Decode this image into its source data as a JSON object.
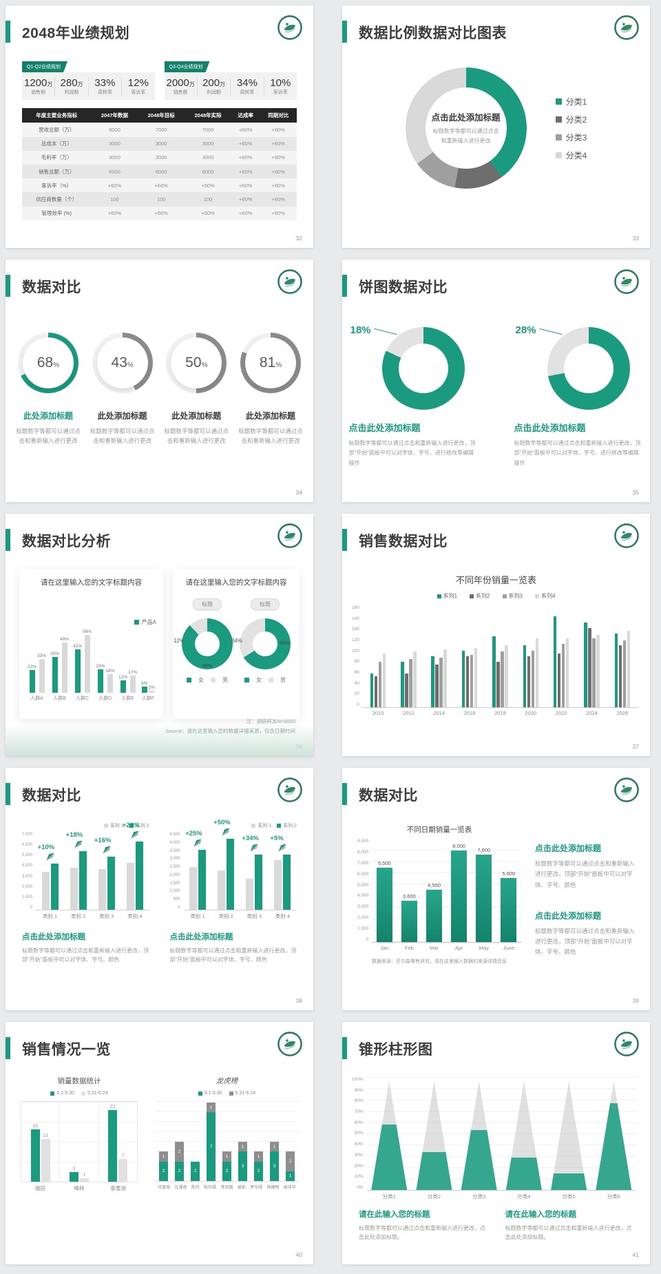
{
  "colors": {
    "teal": "#1a9b80",
    "dark": "#6e6e6e",
    "mid": "#9f9f9f",
    "light": "#d9d9d9",
    "lighter": "#e2e2e2",
    "grayarc": "#8c8c8c",
    "stackgray": "#8e8e8e"
  },
  "slides": {
    "s32": {
      "title": "2048年业绩规划",
      "page": "32",
      "groups": [
        {
          "badge": "Q1-Q2业绩规划",
          "stats": [
            {
              "value": "1200",
              "unit": "万",
              "label": "销售额"
            },
            {
              "value": "280",
              "unit": "万",
              "label": "利润额"
            },
            {
              "value": "33%",
              "unit": "",
              "label": "周转率"
            },
            {
              "value": "12%",
              "unit": "",
              "label": "客诉率"
            }
          ]
        },
        {
          "badge": "Q3-Q4业绩规划",
          "stats": [
            {
              "value": "2000",
              "unit": "万",
              "label": "销售额"
            },
            {
              "value": "200",
              "unit": "万",
              "label": "利润额"
            },
            {
              "value": "34%",
              "unit": "",
              "label": "周转率"
            },
            {
              "value": "10%",
              "unit": "",
              "label": "客诉率"
            }
          ]
        }
      ],
      "table": {
        "headers": [
          "年度主要业务指标",
          "2047年数据",
          "2048年目标",
          "2048年实际",
          "达成率",
          "同期对比"
        ],
        "rows": [
          [
            "营收总额（万）",
            "6000",
            "7000",
            "7000",
            "+60%",
            "+60%"
          ],
          [
            "总成本（万）",
            "3000",
            "3000",
            "3000",
            "+60%",
            "+60%"
          ],
          [
            "毛利率（万）",
            "3000",
            "3000",
            "3000",
            "+60%",
            "+60%"
          ],
          [
            "销售总额（万）",
            "6000",
            "6000",
            "6000",
            "+60%",
            "+60%"
          ],
          [
            "客诉率（%）",
            "+60%",
            "+60%",
            "+60%",
            "+60%",
            "+60%"
          ],
          [
            "供应商数量（个）",
            "100",
            "100",
            "100",
            "+60%",
            "+60%"
          ],
          [
            "管理效率 (%)",
            "+60%",
            "+60%",
            "+60%",
            "+60%",
            "+60%"
          ]
        ]
      }
    },
    "s33": {
      "title": "数据比例数据对比图表",
      "page": "33",
      "chart_data": {
        "type": "pie",
        "categories": [
          "分类1",
          "分类2",
          "分类3",
          "分类4"
        ],
        "values": [
          40,
          13,
          12,
          35
        ],
        "colors": [
          "teal",
          "dark",
          "mid",
          "light"
        ],
        "legend_position": "right"
      },
      "center_title": "点击此处添加标题",
      "center_sub": "标题数字等都可以通过点击和重新输入进行更改"
    },
    "s34": {
      "title": "数据对比",
      "page": "34",
      "chart_data": {
        "type": "gauge",
        "values": [
          68,
          43,
          50,
          81
        ]
      },
      "item_title": "此处添加标题",
      "item_desc": "标题数字等都可以通过点击和重新输入进行更改"
    },
    "s35": {
      "title": "饼图数据对比",
      "page": "35",
      "chart_data": {
        "type": "pie",
        "donuts": [
          {
            "gray_pct": 18,
            "label": "18%"
          },
          {
            "gray_pct": 28,
            "label": "28%"
          }
        ]
      },
      "item_title": "点击此处添加标题",
      "item_desc": "标题数字等都可以通过点击和重新输入进行更改，顶部“开始”面板中可以对字体、字号、进行修改等编辑操作"
    },
    "s36": {
      "title": "数据对比分析",
      "page": "36",
      "card1": {
        "title": "请在这里输入您的文字标题内容",
        "legend": "产品A",
        "chart_data": {
          "type": "bar",
          "categories": [
            "人群A",
            "人群B",
            "人群C",
            "人群D",
            "人群E",
            "人群F"
          ],
          "series": [
            {
              "name": "产品A",
              "values": [
                22,
                35,
                42,
                23,
                12,
                6
              ]
            },
            {
              "name": "对比",
              "values": [
                33,
                49,
                56,
                18,
                17,
                2
              ]
            }
          ],
          "ylim": [
            0,
            60
          ]
        }
      },
      "card2": {
        "title": "请在这里输入您的文字标题内容",
        "pill": "标题",
        "chart_data": {
          "type": "pie",
          "donuts": [
            {
              "gray_pct": 12,
              "gray_label": "12%",
              "teal_label": "88%"
            },
            {
              "gray_pct": 34,
              "gray_label": "34%",
              "teal_label": "66%"
            }
          ]
        },
        "legend_f": "女",
        "legend_m": "男"
      },
      "note1": "注：调研样本N=9000",
      "note2": "Source：请在这里输入您的数据详细来源，包含日期时间"
    },
    "s37": {
      "title": "销售数据对比",
      "page": "37",
      "chart_data": {
        "type": "bar",
        "title": "不同年份销量一览表",
        "categories": [
          "2010",
          "2012",
          "2014",
          "2016",
          "2018",
          "2020",
          "2022",
          "2024",
          "2026"
        ],
        "series": [
          {
            "name": "系列1",
            "color": "teal",
            "values": [
              60,
              80,
              90,
              100,
              125,
              110,
              160,
              150,
              130
            ]
          },
          {
            "name": "系列2",
            "color": "dark",
            "values": [
              55,
              60,
              75,
              90,
              80,
              90,
              95,
              140,
              110
            ]
          },
          {
            "name": "系列3",
            "color": "mid",
            "values": [
              80,
              85,
              88,
              92,
              98,
              100,
              112,
              122,
              118
            ]
          },
          {
            "name": "系列4",
            "color": "light",
            "values": [
              95,
              98,
              102,
              105,
              110,
              122,
              122,
              128,
              135
            ]
          }
        ],
        "ylim": [
          0,
          180
        ],
        "ystep": 20
      }
    },
    "s38": {
      "title": "数据对比",
      "page": "38",
      "legend": [
        "系列 1",
        "系列 2"
      ],
      "chart_data": [
        {
          "type": "bar",
          "categories": [
            "类别 1",
            "类别 2",
            "类别 3",
            "类别 4"
          ],
          "series": [
            {
              "name": "系列 1",
              "values": [
                3450,
                3800,
                3700,
                4250
              ]
            },
            {
              "name": "系列 2",
              "values": [
                4200,
                5300,
                4800,
                6200
              ]
            }
          ],
          "callouts": [
            "+10%",
            "+18%",
            "+16%",
            "+22%"
          ],
          "ylim": [
            0,
            7000
          ],
          "ystep": 1000
        },
        {
          "type": "bar",
          "categories": [
            "类别 1",
            "类别 2",
            "类别 3",
            "类别 4"
          ],
          "series": [
            {
              "name": "系列 1",
              "values": [
                2500,
                2300,
                1800,
                2900
              ]
            },
            {
              "name": "系列 2",
              "values": [
                3500,
                4150,
                3200,
                3200
              ]
            }
          ],
          "callouts": [
            "+25%",
            "+50%",
            "+34%",
            "+5%"
          ],
          "ylim": [
            0,
            4500
          ],
          "ystep": 500
        }
      ],
      "item_title": "点击此处添加标题",
      "item_desc": "标题数字等都可以通过点击和重新输入进行更改，顶部“开始”面板中可以对字体、字号、颜色"
    },
    "s39": {
      "title": "数据对比",
      "page": "39",
      "chart_data": {
        "type": "bar",
        "title": "不同日期销量一览表",
        "categories": [
          "Jan",
          "Feb",
          "Mar",
          "Apr",
          "May",
          "June"
        ],
        "values": [
          6500,
          3600,
          4560,
          8000,
          7600,
          5600
        ],
        "labels": [
          "6,500",
          "3,600",
          "4,560",
          "8,000",
          "7,600",
          "5,600"
        ],
        "ylim": [
          0,
          9000
        ],
        "ystep": 1000
      },
      "note": "数据来源：尼尔森零售研究，请在这里输入数据的来源详情信息",
      "item_title": "点击此处添加标题",
      "item_desc": "标题数字等都可以通过点击和重新输入进行更改，顶部“开始”面板中可以对字体、字号、颜色"
    },
    "s40": {
      "title": "销售情况一览",
      "page": "40",
      "chart1": {
        "title": "销量数据统计",
        "legend": [
          "5.1-5.30",
          "5.31-6.24"
        ],
        "chart_data": {
          "type": "bar",
          "categories": [
            "福田",
            "梅林",
            "香蜜湖"
          ],
          "series": [
            {
              "name": "5.1-5.30",
              "values": [
                16,
                3,
                22
              ]
            },
            {
              "name": "5.31-6.24",
              "values": [
                13,
                1,
                7
              ]
            }
          ],
          "ylim": [
            0,
            24
          ]
        }
      },
      "chart2": {
        "title": "龙虎榜",
        "legend": [
          "5.1-5.30",
          "5.31-6.24"
        ],
        "chart_data": {
          "type": "bar",
          "stacked": true,
          "categories": [
            "付直韬",
            "左湘南",
            "陈玲",
            "陈欣慧",
            "李亚丽",
            "易拓",
            "尹华绿",
            "钟建明",
            "周伟华"
          ],
          "series": [
            {
              "name": "5.1-5.30",
              "values": [
                2,
                2,
                2,
                7,
                2,
                3,
                2,
                3,
                1
              ]
            },
            {
              "name": "5.31-6.24",
              "values": [
                1,
                2,
                0,
                1,
                1,
                1,
                1,
                1,
                2
              ]
            }
          ],
          "ylim": [
            0,
            8
          ]
        }
      }
    },
    "s41": {
      "title": "锥形柱形图",
      "page": "41",
      "chart_data": {
        "type": "bar",
        "shape": "cone",
        "categories": [
          "分类1",
          "分类2",
          "分类3",
          "分类4",
          "分类5",
          "分类6"
        ],
        "teal_pct": [
          60,
          35,
          55,
          30,
          15,
          80
        ],
        "ylabels": [
          "100%",
          "90%",
          "80%",
          "70%",
          "60%",
          "50%",
          "40%",
          "30%",
          "20%",
          "10%",
          "0%"
        ]
      },
      "item_title": "请在此输入您的标题",
      "item_desc": "标题数字等都可以通过点击和重新输入进行更改，点击此处添加标题。"
    }
  }
}
